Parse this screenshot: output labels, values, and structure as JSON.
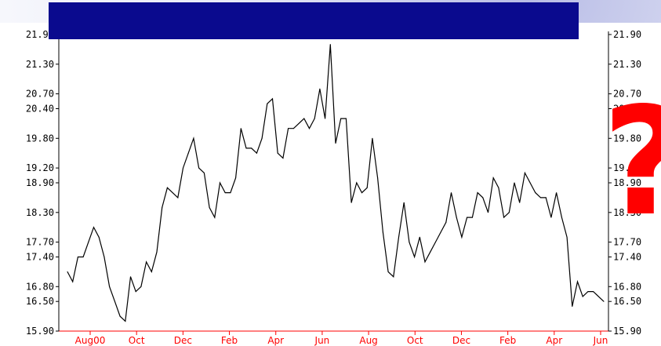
{
  "chart_data": {
    "type": "line",
    "title": "",
    "xlabel": "",
    "ylabel": "",
    "ylim": [
      15.9,
      21.9
    ],
    "y_ticks": [
      "21.90",
      "21.30",
      "20.70",
      "20.40",
      "19.80",
      "19.20",
      "18.90",
      "18.30",
      "17.70",
      "17.40",
      "16.80",
      "16.50",
      "15.90"
    ],
    "x_tick_labels": [
      "Aug00",
      "Oct",
      "Dec",
      "Feb",
      "Apr",
      "Jun",
      "Aug",
      "Oct",
      "Dec",
      "Feb",
      "Apr",
      "Jun"
    ],
    "grid": false,
    "series": [
      {
        "color": "#000000",
        "values": [
          17.1,
          16.9,
          17.4,
          17.4,
          17.7,
          18.0,
          17.8,
          17.4,
          16.8,
          16.5,
          16.2,
          16.1,
          17.0,
          16.7,
          16.8,
          17.3,
          17.1,
          17.5,
          18.4,
          18.8,
          18.7,
          18.6,
          19.2,
          19.5,
          19.8,
          19.2,
          19.1,
          18.4,
          18.2,
          18.9,
          18.7,
          18.7,
          19.0,
          20.0,
          19.6,
          19.6,
          19.5,
          19.8,
          20.5,
          20.6,
          19.5,
          19.4,
          20.0,
          20.0,
          20.1,
          20.2,
          20.0,
          20.2,
          20.8,
          20.2,
          21.7,
          19.7,
          20.2,
          20.2,
          18.5,
          18.9,
          18.7,
          18.8,
          19.8,
          19.0,
          17.9,
          17.1,
          17.0,
          17.8,
          18.5,
          17.7,
          17.4,
          17.8,
          17.3,
          17.5,
          17.7,
          17.9,
          18.1,
          18.7,
          18.2,
          17.8,
          18.2,
          18.2,
          18.7,
          18.6,
          18.3,
          19.0,
          18.8,
          18.2,
          18.3,
          18.9,
          18.5,
          19.1,
          18.9,
          18.7,
          18.6,
          18.6,
          18.2,
          18.7,
          18.2,
          17.8,
          16.4,
          16.9,
          16.6,
          16.7,
          16.7,
          16.6,
          16.5
        ]
      }
    ]
  }
}
